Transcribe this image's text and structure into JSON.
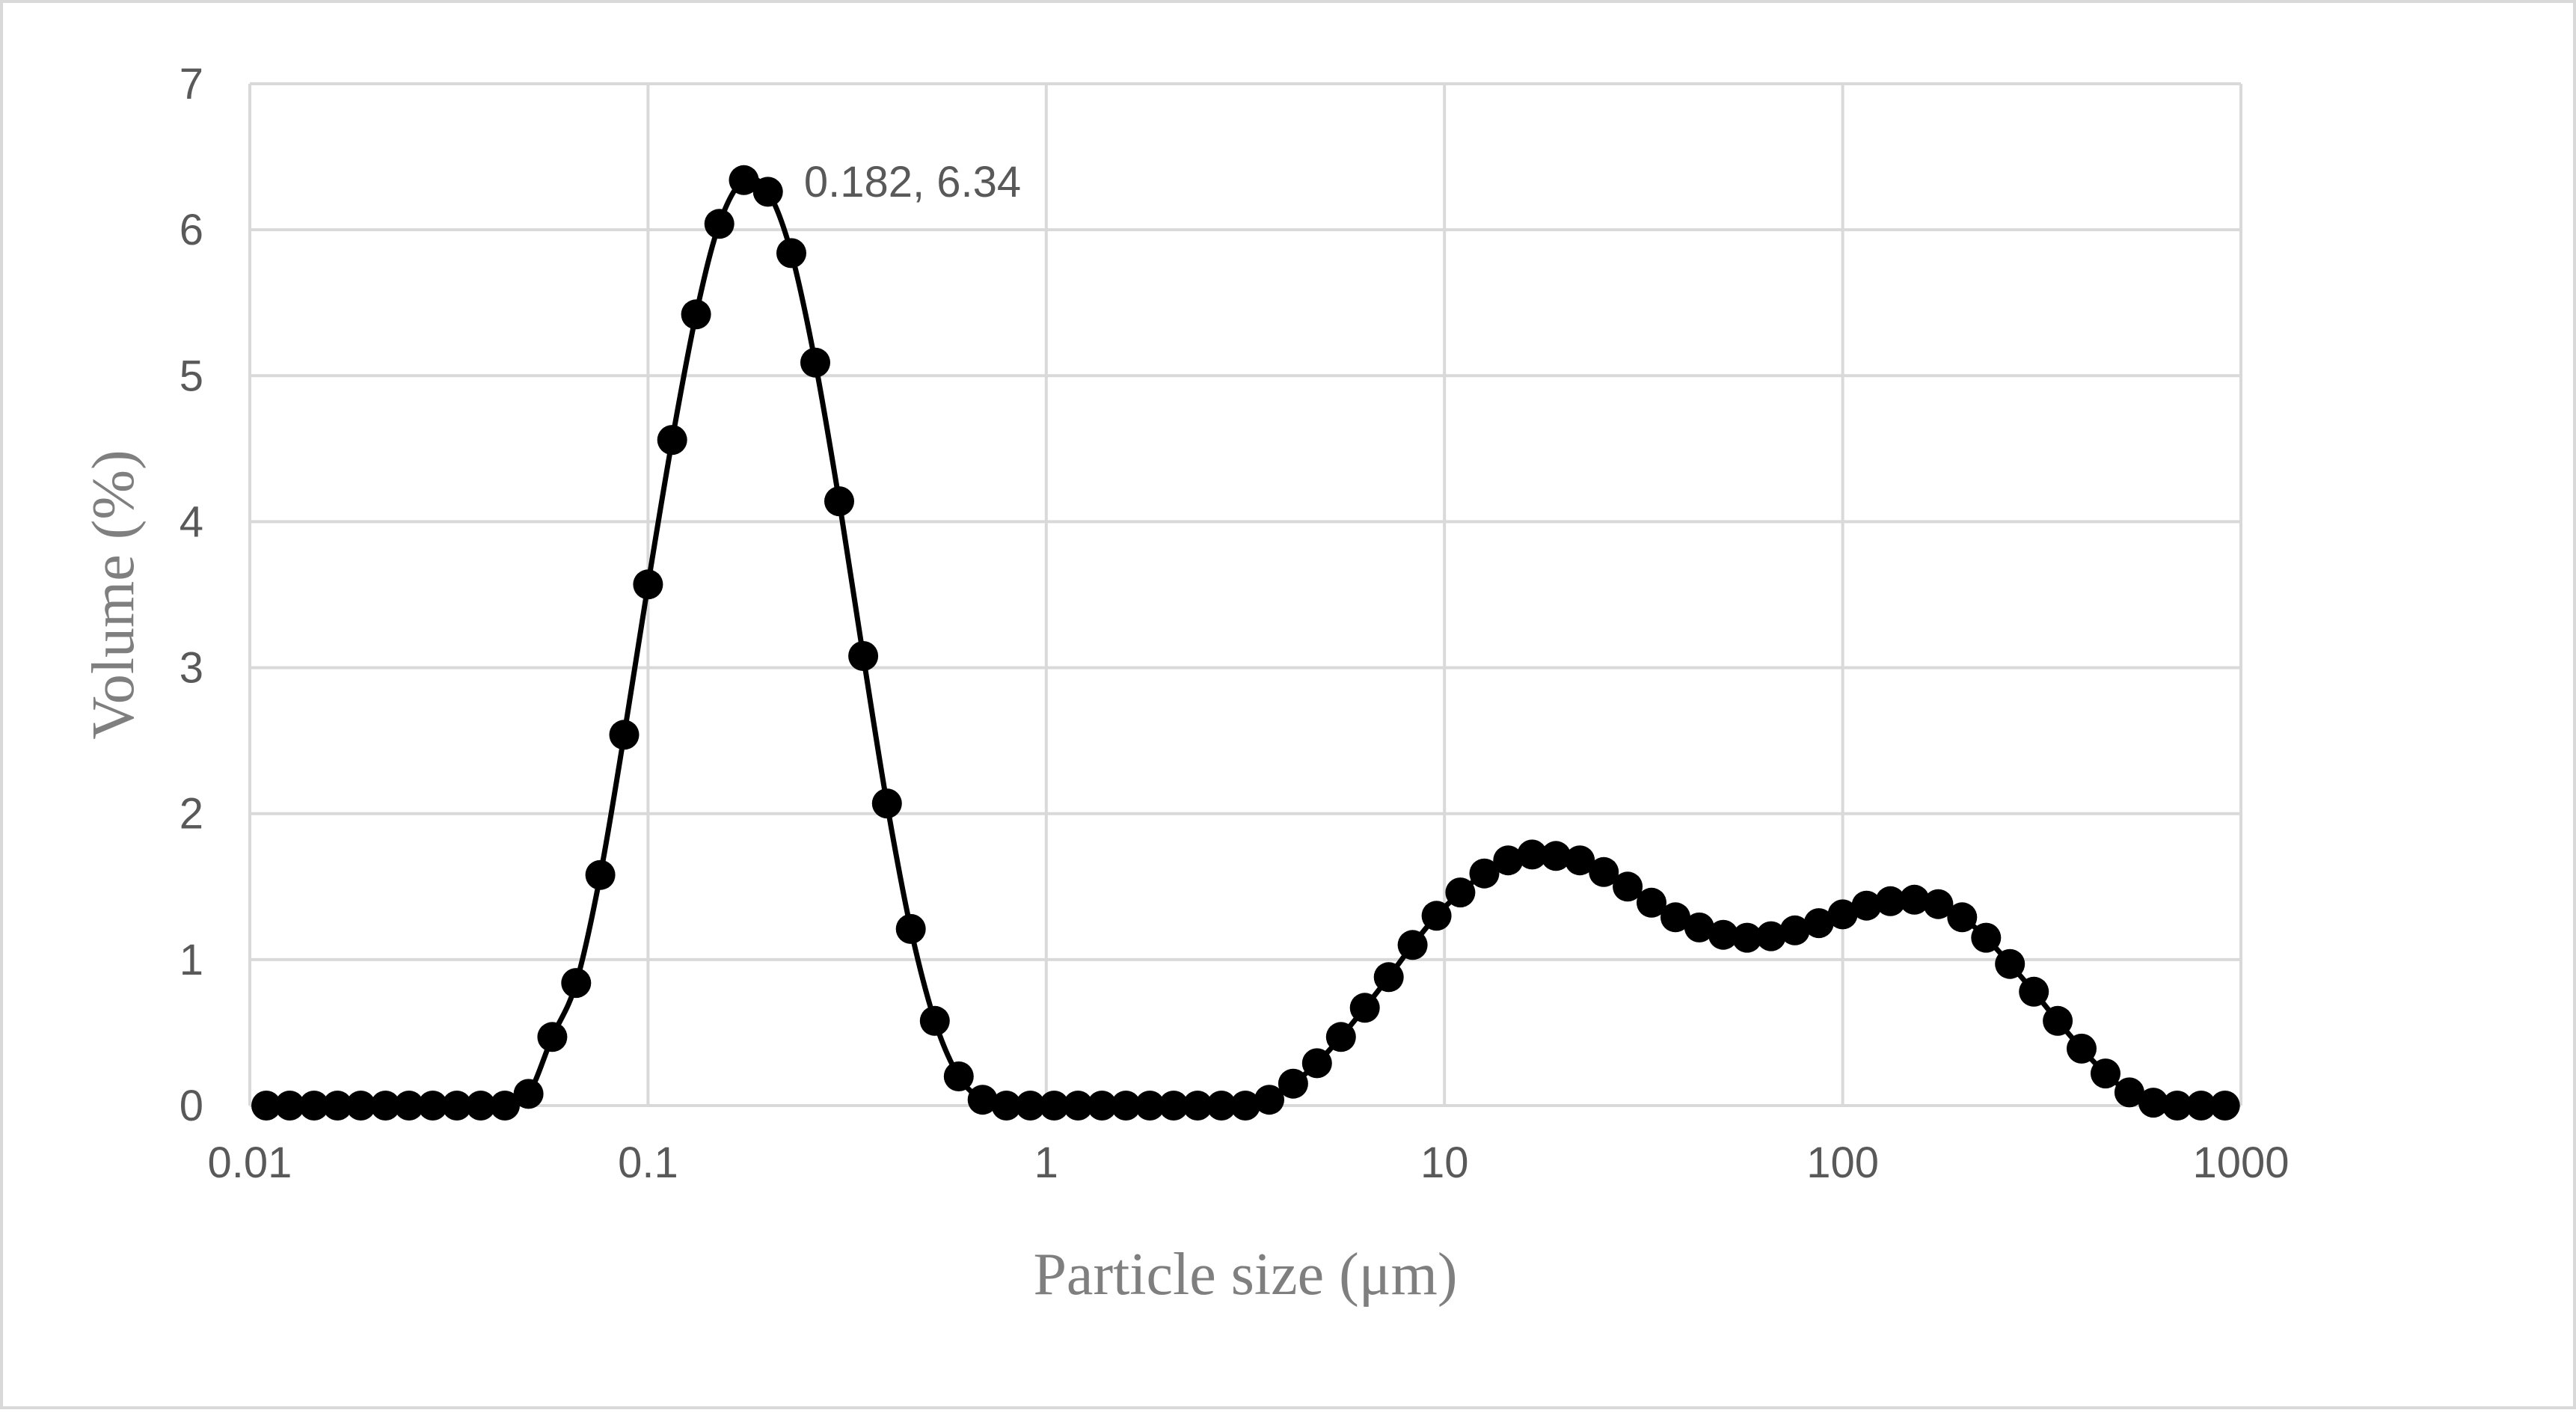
{
  "chart_data": {
    "type": "scatter",
    "title": "",
    "xlabel": "Particle size (μm)",
    "ylabel": "Volume (%)",
    "x_scale": "log",
    "xlim": [
      0.01,
      1000
    ],
    "ylim": [
      0,
      7
    ],
    "x_ticks": [
      0.01,
      0.1,
      1,
      10,
      100,
      1000
    ],
    "x_tick_labels": [
      "0.01",
      "0.1",
      "1",
      "10",
      "100",
      "1000"
    ],
    "y_ticks": [
      0,
      1,
      2,
      3,
      4,
      5,
      6,
      7
    ],
    "y_tick_labels": [
      "0",
      "1",
      "2",
      "3",
      "4",
      "5",
      "6",
      "7"
    ],
    "grid": true,
    "legend": "none",
    "line_style": "smooth line with markers",
    "series_color": "#000000",
    "annotation": {
      "text": "0.182, 6.34",
      "x": 0.182,
      "y": 6.34
    },
    "series": [
      {
        "x": [
          0.011,
          0.0126,
          0.0145,
          0.0166,
          0.019,
          0.0219,
          0.0251,
          0.0288,
          0.0331,
          0.038,
          0.0437,
          0.0501,
          0.0575,
          0.066,
          0.0759,
          0.0871,
          0.1,
          0.115,
          0.132,
          0.151,
          0.174,
          0.2,
          0.229,
          0.263,
          0.302,
          0.347,
          0.398,
          0.457,
          0.525,
          0.603,
          0.692,
          0.794,
          0.912,
          1.047,
          1.202,
          1.38,
          1.585,
          1.82,
          2.089,
          2.399,
          2.754,
          3.162,
          3.631,
          4.169,
          4.786,
          5.495,
          6.31,
          7.244,
          8.318,
          9.55,
          10.96,
          12.59,
          14.45,
          16.6,
          19.05,
          21.88,
          25.12,
          28.84,
          33.11,
          38.02,
          43.65,
          50.12,
          57.54,
          66.07,
          75.86,
          87.1,
          100,
          114.8,
          131.8,
          151.4,
          173.8,
          199.5,
          229.1,
          263,
          302,
          346.7,
          398.1,
          457.1,
          524.8,
          602.6,
          691.8,
          794.3,
          912
        ],
        "y": [
          0,
          0,
          0,
          0,
          0,
          0,
          0,
          0,
          0,
          0,
          0,
          0.08,
          0.47,
          0.84,
          1.58,
          2.54,
          3.57,
          4.56,
          5.42,
          6.04,
          6.34,
          6.26,
          5.84,
          5.09,
          4.14,
          3.08,
          2.07,
          1.21,
          0.58,
          0.2,
          0.04,
          0,
          0,
          0,
          0,
          0,
          0,
          0,
          0,
          0,
          0,
          0,
          0.04,
          0.15,
          0.29,
          0.47,
          0.67,
          0.88,
          1.1,
          1.3,
          1.46,
          1.59,
          1.68,
          1.72,
          1.71,
          1.68,
          1.6,
          1.5,
          1.39,
          1.29,
          1.22,
          1.17,
          1.15,
          1.16,
          1.2,
          1.25,
          1.31,
          1.37,
          1.4,
          1.41,
          1.38,
          1.29,
          1.15,
          0.97,
          0.78,
          0.58,
          0.39,
          0.22,
          0.09,
          0.02,
          0,
          0,
          0
        ]
      }
    ]
  }
}
